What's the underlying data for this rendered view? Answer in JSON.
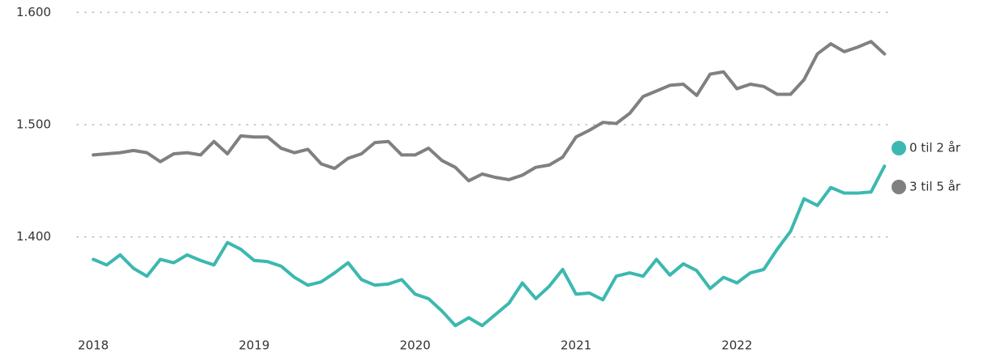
{
  "chart_data": {
    "type": "line",
    "categories": [
      "2018",
      null,
      null,
      null,
      null,
      null,
      null,
      null,
      null,
      null,
      null,
      null,
      "2019",
      null,
      null,
      null,
      null,
      null,
      null,
      null,
      null,
      null,
      null,
      null,
      "2020",
      null,
      null,
      null,
      null,
      null,
      null,
      null,
      null,
      null,
      null,
      null,
      "2021",
      null,
      null,
      null,
      null,
      null,
      null,
      null,
      null,
      null,
      null,
      null,
      "2022",
      null,
      null,
      null,
      null,
      null,
      null,
      null,
      null,
      null,
      null,
      null
    ],
    "series": [
      {
        "name": "0 til 2 år",
        "color": "#3cb8b0",
        "values": [
          1380,
          1375,
          1384,
          1372,
          1365,
          1380,
          1377,
          1384,
          1379,
          1375,
          1395,
          1389,
          1379,
          1378,
          1374,
          1364,
          1357,
          1360,
          1368,
          1377,
          1362,
          1357,
          1358,
          1362,
          1349,
          1345,
          1334,
          1321,
          1328,
          1321,
          1331,
          1341,
          1359,
          1345,
          1356,
          1371,
          1349,
          1350,
          1344,
          1365,
          1368,
          1365,
          1380,
          1366,
          1376,
          1370,
          1354,
          1364,
          1359,
          1368,
          1371,
          1389,
          1405,
          1434,
          1428,
          1444,
          1439,
          1439,
          1440,
          1463
        ]
      },
      {
        "name": "3 til 5 år",
        "color": "#808080",
        "values": [
          1473,
          1474,
          1475,
          1477,
          1475,
          1467,
          1474,
          1475,
          1473,
          1485,
          1474,
          1490,
          1489,
          1489,
          1479,
          1475,
          1478,
          1465,
          1461,
          1470,
          1474,
          1484,
          1485,
          1473,
          1473,
          1479,
          1468,
          1462,
          1450,
          1456,
          1453,
          1451,
          1455,
          1462,
          1464,
          1471,
          1489,
          1495,
          1502,
          1501,
          1510,
          1525,
          1530,
          1535,
          1536,
          1526,
          1545,
          1547,
          1532,
          1536,
          1534,
          1527,
          1527,
          1540,
          1563,
          1572,
          1565,
          1569,
          1574,
          1563
        ]
      }
    ],
    "ylim": [
      1319,
      1611
    ],
    "yticks": [
      {
        "value": 1400,
        "label": "1.400"
      },
      {
        "value": 1500,
        "label": "1.500"
      },
      {
        "value": 1600,
        "label": "1.600"
      }
    ],
    "grid": true,
    "legend": "right"
  }
}
